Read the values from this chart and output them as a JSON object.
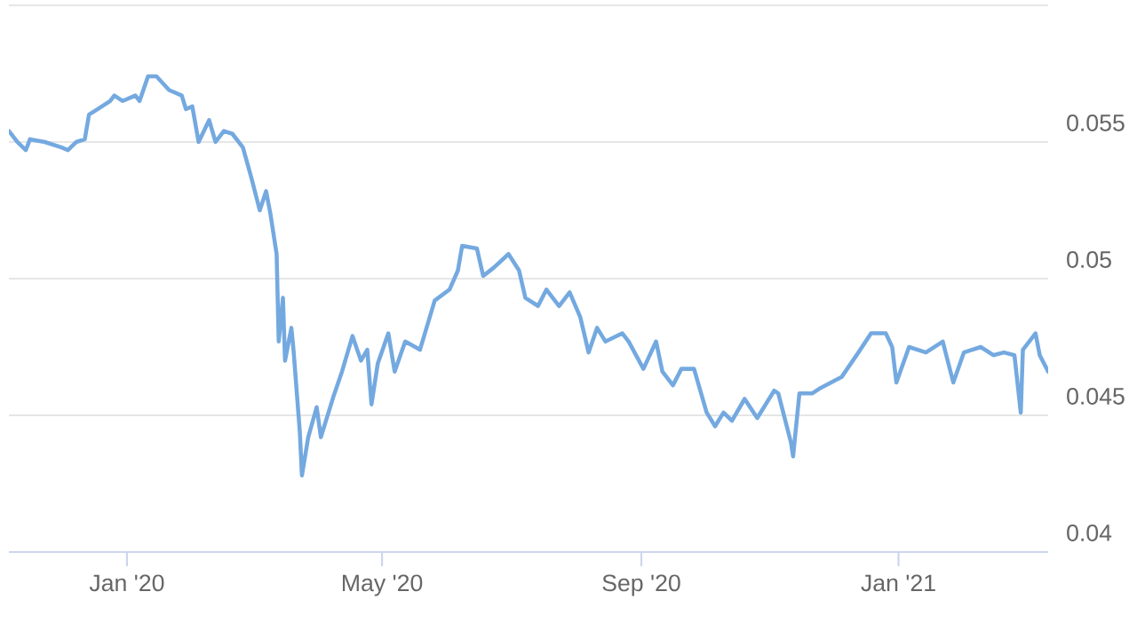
{
  "chart_data": {
    "type": "line",
    "x": [
      "2019-11-06",
      "2019-11-10",
      "2019-11-14",
      "2019-11-16",
      "2019-11-23",
      "2019-12-01",
      "2019-12-04",
      "2019-12-08",
      "2019-12-12",
      "2019-12-14",
      "2019-12-18",
      "2019-12-24",
      "2019-12-26",
      "2019-12-30",
      "2020-01-05",
      "2020-01-07",
      "2020-01-11",
      "2020-01-15",
      "2020-01-21",
      "2020-01-27",
      "2020-01-29",
      "2020-02-01",
      "2020-02-04",
      "2020-02-09",
      "2020-02-12",
      "2020-02-16",
      "2020-02-20",
      "2020-02-25",
      "2020-02-29",
      "2020-03-04",
      "2020-03-07",
      "2020-03-09",
      "2020-03-12",
      "2020-03-13",
      "2020-03-15",
      "2020-03-16",
      "2020-03-19",
      "2020-03-20",
      "2020-03-23",
      "2020-03-24",
      "2020-03-27",
      "2020-03-31",
      "2020-04-02",
      "2020-04-08",
      "2020-04-12",
      "2020-04-17",
      "2020-04-21",
      "2020-04-24",
      "2020-04-26",
      "2020-04-29",
      "2020-05-04",
      "2020-05-07",
      "2020-05-12",
      "2020-05-19",
      "2020-05-26",
      "2020-06-02",
      "2020-06-06",
      "2020-06-08",
      "2020-06-15",
      "2020-06-18",
      "2020-06-23",
      "2020-06-30",
      "2020-07-05",
      "2020-07-08",
      "2020-07-14",
      "2020-07-18",
      "2020-07-24",
      "2020-07-29",
      "2020-08-03",
      "2020-08-07",
      "2020-08-11",
      "2020-08-15",
      "2020-08-23",
      "2020-08-26",
      "2020-09-02",
      "2020-09-08",
      "2020-09-11",
      "2020-09-16",
      "2020-09-20",
      "2020-09-26",
      "2020-10-02",
      "2020-10-06",
      "2020-10-10",
      "2020-10-14",
      "2020-10-20",
      "2020-10-26",
      "2020-11-03",
      "2020-11-05",
      "2020-11-11",
      "2020-11-12",
      "2020-11-15",
      "2020-11-21",
      "2020-11-25",
      "2020-12-05",
      "2020-12-13",
      "2020-12-19",
      "2020-12-26",
      "2020-12-29",
      "2020-12-31",
      "2021-01-06",
      "2021-01-14",
      "2021-01-22",
      "2021-01-27",
      "2021-02-01",
      "2021-02-09",
      "2021-02-15",
      "2021-02-20",
      "2021-02-25",
      "2021-02-28",
      "2021-03-01",
      "2021-03-07",
      "2021-03-09",
      "2021-03-13"
    ],
    "series": [
      {
        "color": "#74a9e0",
        "values": [
          0.0554,
          0.055,
          0.0547,
          0.0551,
          0.055,
          0.0548,
          0.0547,
          0.055,
          0.0551,
          0.056,
          0.0562,
          0.0565,
          0.0567,
          0.0565,
          0.0567,
          0.0565,
          0.0574,
          0.0574,
          0.0569,
          0.0567,
          0.0562,
          0.0563,
          0.055,
          0.0558,
          0.055,
          0.0554,
          0.0553,
          0.0548,
          0.0537,
          0.0525,
          0.0532,
          0.0524,
          0.0509,
          0.0477,
          0.0493,
          0.047,
          0.0482,
          0.0474,
          0.0444,
          0.0428,
          0.0442,
          0.0453,
          0.0442,
          0.0457,
          0.0466,
          0.0479,
          0.047,
          0.0474,
          0.0454,
          0.0469,
          0.048,
          0.0466,
          0.0477,
          0.0474,
          0.0492,
          0.0496,
          0.0503,
          0.0512,
          0.0511,
          0.0501,
          0.0504,
          0.0509,
          0.0503,
          0.0493,
          0.049,
          0.0496,
          0.049,
          0.0495,
          0.0486,
          0.0473,
          0.0482,
          0.0477,
          0.048,
          0.0477,
          0.0467,
          0.0477,
          0.0466,
          0.0461,
          0.0467,
          0.0467,
          0.0451,
          0.0446,
          0.0451,
          0.0448,
          0.0456,
          0.0449,
          0.0459,
          0.0458,
          0.044,
          0.0435,
          0.0458,
          0.0458,
          0.046,
          0.0464,
          0.0473,
          0.048,
          0.048,
          0.0475,
          0.0462,
          0.0475,
          0.0473,
          0.0477,
          0.0462,
          0.0473,
          0.0475,
          0.0472,
          0.0473,
          0.0472,
          0.0451,
          0.0474,
          0.048,
          0.0472,
          0.0466
        ]
      }
    ],
    "xlim": [
      "2019-11-06",
      "2021-03-13"
    ],
    "xticks": [
      {
        "value": "2020-01-01",
        "label": "Jan '20"
      },
      {
        "value": "2020-05-01",
        "label": "May '20"
      },
      {
        "value": "2020-09-01",
        "label": "Sep '20"
      },
      {
        "value": "2021-01-01",
        "label": "Jan '21"
      }
    ],
    "ylim": [
      0.04,
      0.06
    ],
    "yticks": [
      0.04,
      0.045,
      0.05,
      0.055,
      {
        "value": 0.06,
        "label": null
      }
    ],
    "grid": "y",
    "marker": "none",
    "line_style": "solid"
  }
}
